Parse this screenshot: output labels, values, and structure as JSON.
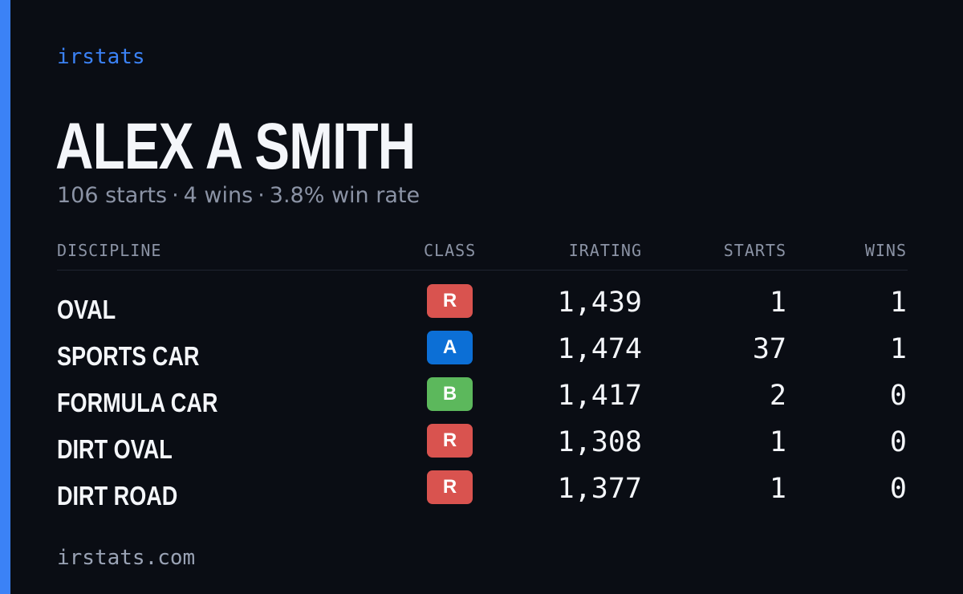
{
  "brand": "irstats",
  "driver": {
    "name": "ALEX A SMITH",
    "starts_text": "106 starts",
    "wins_text": "4 wins",
    "winrate_text": "3.8% win rate",
    "separator": "·"
  },
  "table": {
    "headers": {
      "discipline": "DISCIPLINE",
      "class": "CLASS",
      "irating": "IRATING",
      "starts": "STARTS",
      "wins": "WINS"
    },
    "rows": [
      {
        "discipline": "OVAL",
        "class": "R",
        "class_color": "#d9534f",
        "irating": "1,439",
        "starts": "1",
        "wins": "1"
      },
      {
        "discipline": "SPORTS CAR",
        "class": "A",
        "class_color": "#0c6fd6",
        "irating": "1,474",
        "starts": "37",
        "wins": "1"
      },
      {
        "discipline": "FORMULA CAR",
        "class": "B",
        "class_color": "#5cb85c",
        "irating": "1,417",
        "starts": "2",
        "wins": "0"
      },
      {
        "discipline": "DIRT OVAL",
        "class": "R",
        "class_color": "#d9534f",
        "irating": "1,308",
        "starts": "1",
        "wins": "0"
      },
      {
        "discipline": "DIRT ROAD",
        "class": "R",
        "class_color": "#d9534f",
        "irating": "1,377",
        "starts": "1",
        "wins": "0"
      }
    ]
  },
  "footer": "irstats.com",
  "colors": {
    "accent": "#3b82f6",
    "background": "#0a0d14",
    "muted": "#8b93a5"
  }
}
